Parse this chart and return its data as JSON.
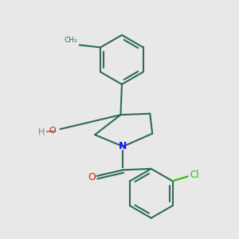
{
  "background_color": "#e8e8e8",
  "bond_color": "#2d6b5a",
  "bond_width": 1.5,
  "N_color": "#1a1aee",
  "O_color": "#cc2200",
  "Cl_color": "#33bb00",
  "H_color": "#5a8a7a",
  "figsize": [
    3.0,
    3.0
  ],
  "dpi": 100,
  "xlim": [
    0,
    10
  ],
  "ylim": [
    0,
    10
  ]
}
